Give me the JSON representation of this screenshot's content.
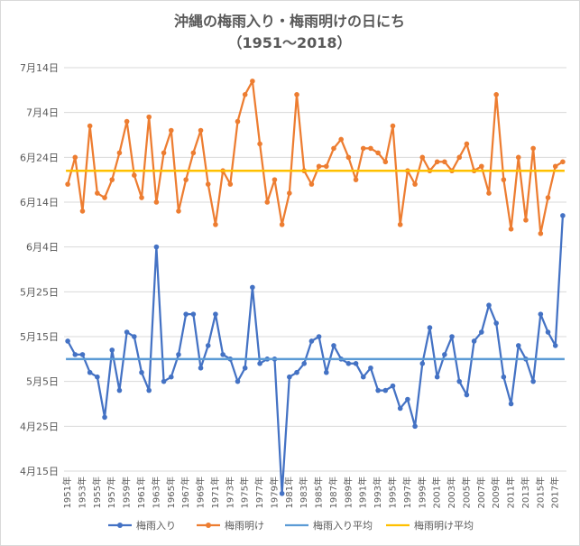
{
  "chart_data": {
    "type": "line",
    "title": "沖縄の梅雨入り・梅雨明けの日にち",
    "subtitle": "（1951～2018）",
    "y_unit": "day-of-year",
    "y_tick_labels": [
      "4月15日",
      "4月25日",
      "5月5日",
      "5月15日",
      "5月25日",
      "6月4日",
      "6月14日",
      "6月24日",
      "7月4日",
      "7月14日"
    ],
    "ylim_labels": [
      "4月15日",
      "7月14日"
    ],
    "years": [
      1951,
      1952,
      1953,
      1954,
      1955,
      1956,
      1957,
      1958,
      1959,
      1960,
      1961,
      1962,
      1963,
      1964,
      1965,
      1966,
      1967,
      1968,
      1969,
      1970,
      1971,
      1972,
      1973,
      1974,
      1975,
      1976,
      1977,
      1978,
      1979,
      1980,
      1981,
      1982,
      1983,
      1984,
      1985,
      1986,
      1987,
      1988,
      1989,
      1990,
      1991,
      1992,
      1993,
      1994,
      1995,
      1996,
      1997,
      1998,
      1999,
      2000,
      2001,
      2002,
      2003,
      2004,
      2005,
      2006,
      2007,
      2008,
      2009,
      2010,
      2011,
      2012,
      2013,
      2014,
      2015,
      2016,
      2017,
      2018
    ],
    "x_tick_labels": [
      "1951年",
      "1953年",
      "1955年",
      "1957年",
      "1959年",
      "1961年",
      "1963年",
      "1965年",
      "1967年",
      "1969年",
      "1971年",
      "1973年",
      "1975年",
      "1977年",
      "1979年",
      "1981年",
      "1983年",
      "1985年",
      "1987年",
      "1989年",
      "1991年",
      "1993年",
      "1995年",
      "1997年",
      "1999年",
      "2001年",
      "2003年",
      "2005年",
      "2007年",
      "2009年",
      "2011年",
      "2013年",
      "2015年",
      "2017年"
    ],
    "series": [
      {
        "name": "梅雨入り",
        "color": "#4472c4",
        "markers": true,
        "values_day_of_year": [
          134,
          131,
          131,
          127,
          126,
          117,
          132,
          123,
          136,
          135,
          127,
          123,
          155,
          125,
          126,
          131,
          140,
          140,
          128,
          133,
          140,
          131,
          130,
          125,
          128,
          146,
          129,
          130,
          130,
          100,
          126,
          127,
          129,
          134,
          135,
          127,
          133,
          130,
          129,
          129,
          126,
          128,
          123,
          123,
          124,
          119,
          121,
          115,
          129,
          137,
          126,
          131,
          135,
          125,
          122,
          134,
          136,
          142,
          138,
          126,
          120,
          133,
          130,
          125,
          140,
          136,
          133,
          162
        ],
        "values_date": [
          "5月14日",
          "5月11日",
          "5月11日",
          "5月7日",
          "5月6日",
          "4月27日",
          "5月12日",
          "5月3日",
          "5月16日",
          "5月15日",
          "5月7日",
          "5月3日",
          "6月4日",
          "5月5日",
          "5月6日",
          "5月11日",
          "5月20日",
          "5月20日",
          "5月8日",
          "5月13日",
          "5月20日",
          "5月11日",
          "5月10日",
          "5月5日",
          "5月8日",
          "5月26日",
          "5月9日",
          "5月10日",
          "5月10日",
          "4月10日",
          "5月6日",
          "5月7日",
          "5月9日",
          "5月14日",
          "5月15日",
          "5月7日",
          "5月13日",
          "5月10日",
          "5月9日",
          "5月9日",
          "5月6日",
          "5月8日",
          "5月3日",
          "5月3日",
          "5月4日",
          "4月29日",
          "5月1日",
          "4月25日",
          "5月9日",
          "5月17日",
          "5月6日",
          "5月11日",
          "5月15日",
          "5月5日",
          "5月2日",
          "5月14日",
          "5月16日",
          "5月22日",
          "5月18日",
          "5月6日",
          "4月30日",
          "5月13日",
          "5月10日",
          "5月5日",
          "5月20日",
          "5月16日",
          "5月13日",
          "6月11日"
        ]
      },
      {
        "name": "梅雨明け",
        "color": "#ed7d31",
        "markers": true,
        "values_day_of_year": [
          169,
          175,
          163,
          182,
          167,
          166,
          170,
          176,
          183,
          171,
          166,
          184,
          165,
          176,
          181,
          163,
          170,
          176,
          181,
          169,
          160,
          172,
          169,
          183,
          189,
          192,
          178,
          165,
          170,
          160,
          167,
          189,
          172,
          169,
          173,
          173,
          177,
          179,
          175,
          170,
          177,
          177,
          176,
          174,
          182,
          160,
          172,
          169,
          175,
          172,
          174,
          174,
          172,
          175,
          178,
          172,
          173,
          167,
          189,
          170,
          159,
          175,
          161,
          177,
          158,
          166,
          173,
          174
        ],
        "values_date": [
          "6月18日",
          "6月24日",
          "6月12日",
          "7月1日",
          "6月16日",
          "6月15日",
          "6月19日",
          "6月25日",
          "7月2日",
          "6月20日",
          "6月15日",
          "7月3日",
          "6月14日",
          "6月25日",
          "6月30日",
          "6月12日",
          "6月19日",
          "6月25日",
          "6月30日",
          "6月18日",
          "6月9日",
          "6月21日",
          "6月18日",
          "7月2日",
          "7月8日",
          "7月11日",
          "6月27日",
          "6月14日",
          "6月19日",
          "6月9日",
          "6月16日",
          "7月8日",
          "6月21日",
          "6月18日",
          "6月22日",
          "6月22日",
          "6月26日",
          "6月28日",
          "6月24日",
          "6月19日",
          "6月26日",
          "6月26日",
          "6月25日",
          "6月23日",
          "7月1日",
          "6月9日",
          "6月21日",
          "6月18日",
          "6月24日",
          "6月21日",
          "6月23日",
          "6月23日",
          "6月21日",
          "6月24日",
          "6月27日",
          "6月21日",
          "6月22日",
          "6月16日",
          "7月8日",
          "6月19日",
          "6月8日",
          "6月24日",
          "6月10日",
          "6月26日",
          "6月7日",
          "6月15日",
          "6月22日",
          "6月23日"
        ]
      },
      {
        "name": "梅雨入り平均",
        "color": "#5b9bd5",
        "markers": false,
        "value_day_of_year": 130,
        "value_date": "5月10日"
      },
      {
        "name": "梅雨明け平均",
        "color": "#ffc000",
        "markers": false,
        "value_day_of_year": 172,
        "value_date": "6月21日"
      }
    ],
    "grid": true,
    "legend_position": "bottom"
  }
}
